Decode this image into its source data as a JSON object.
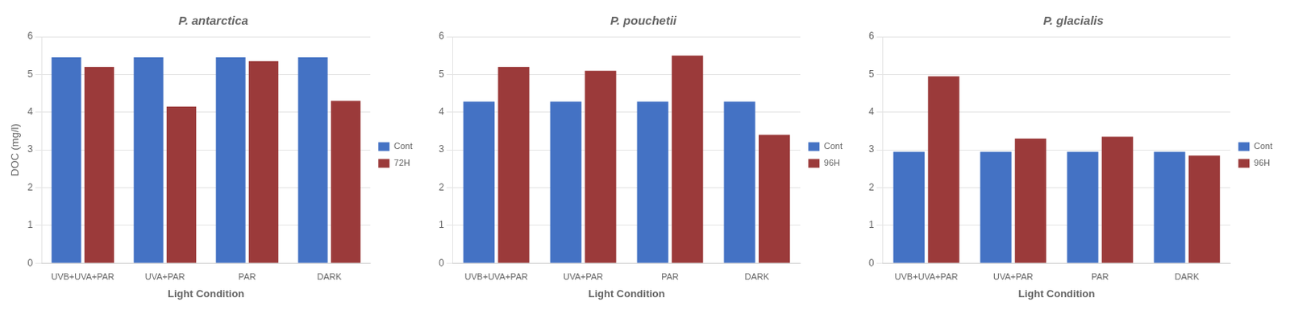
{
  "chart_data": [
    {
      "type": "bar",
      "title": "P. antarctica",
      "categories": [
        "UVB+UVA+PAR",
        "UVA+PAR",
        "PAR",
        "DARK"
      ],
      "series": [
        {
          "name": "Cont",
          "color": "#4472C4",
          "values": [
            5.45,
            5.45,
            5.45,
            5.45
          ]
        },
        {
          "name": "72H",
          "color": "#9B3A3A",
          "values": [
            5.2,
            4.15,
            5.35,
            4.3
          ]
        }
      ],
      "xlabel": "Light Condition",
      "ylabel": "DOC (mg/l)",
      "ylim": [
        0,
        6
      ],
      "yticks": [
        0,
        1,
        2,
        3,
        4,
        5,
        6
      ],
      "grid": true,
      "legend": "right"
    },
    {
      "type": "bar",
      "title": "P. pouchetii",
      "categories": [
        "UVB+UVA+PAR",
        "UVA+PAR",
        "PAR",
        "DARK"
      ],
      "series": [
        {
          "name": "Cont",
          "color": "#4472C4",
          "values": [
            4.28,
            4.28,
            4.28,
            4.28
          ]
        },
        {
          "name": "96H",
          "color": "#9B3A3A",
          "values": [
            5.2,
            5.1,
            5.5,
            3.4
          ]
        }
      ],
      "xlabel": "Light Condition",
      "ylim": [
        0,
        6
      ],
      "yticks": [
        0,
        1,
        2,
        3,
        4,
        5,
        6
      ],
      "grid": true,
      "legend": "right"
    },
    {
      "type": "bar",
      "title": "P. glacialis",
      "categories": [
        "UVB+UVA+PAR",
        "UVA+PAR",
        "PAR",
        "DARK"
      ],
      "series": [
        {
          "name": "Cont",
          "color": "#4472C4",
          "values": [
            2.95,
            2.95,
            2.95,
            2.95
          ]
        },
        {
          "name": "96H",
          "color": "#9B3A3A",
          "values": [
            4.95,
            3.3,
            3.35,
            2.85
          ]
        }
      ],
      "xlabel": "Light Condition",
      "ylim": [
        0,
        6
      ],
      "yticks": [
        0,
        1,
        2,
        3,
        4,
        5,
        6
      ],
      "grid": true,
      "legend": "right"
    }
  ]
}
